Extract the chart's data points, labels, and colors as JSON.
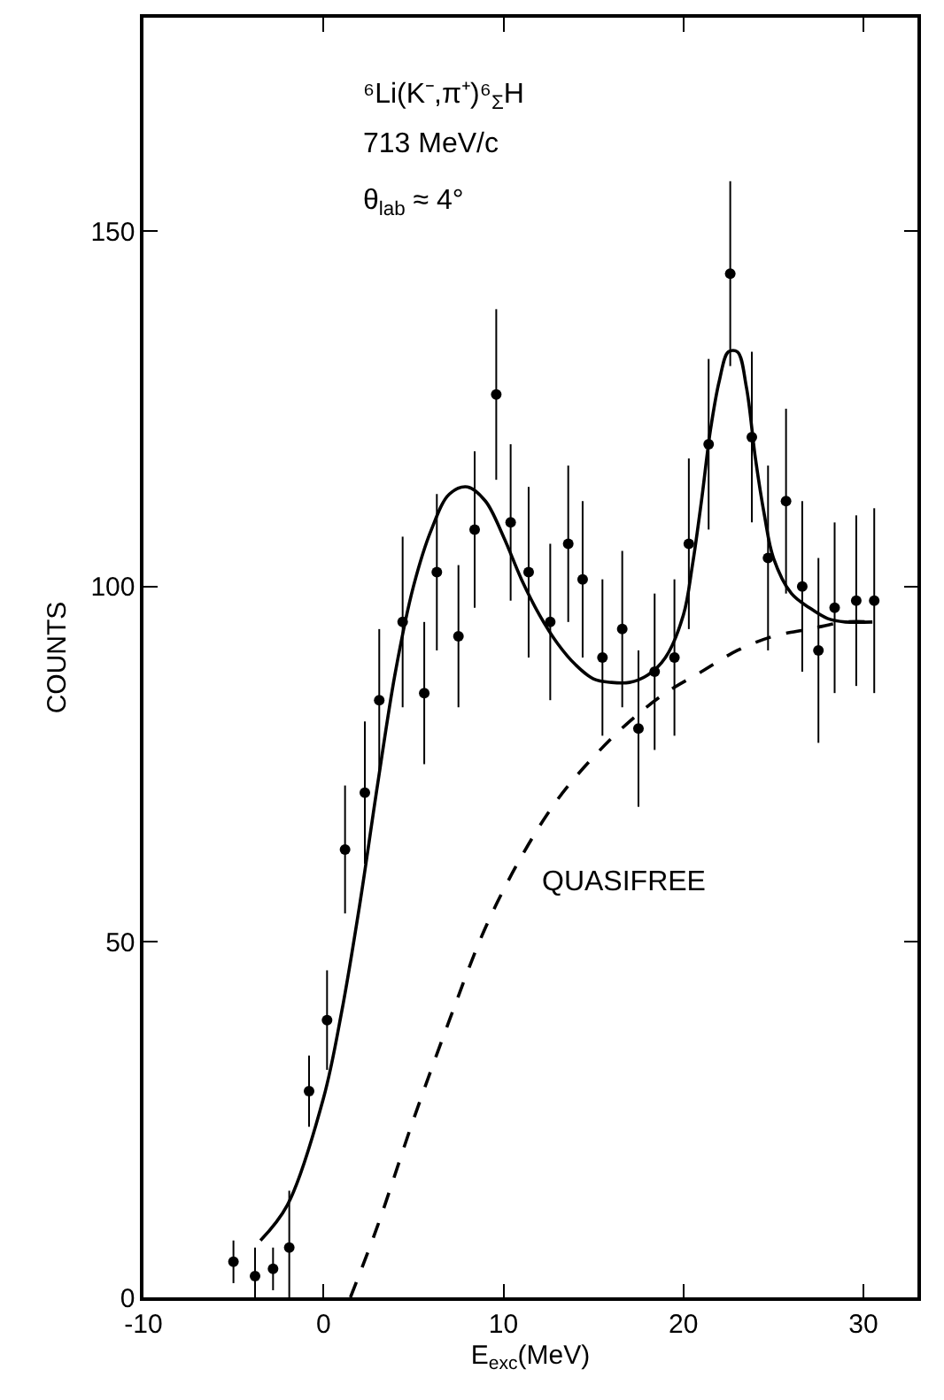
{
  "chart_data": {
    "type": "scatter",
    "xlabel": "E$_{exc}$(MeV)",
    "ylabel": "COUNTS",
    "annotations": [
      "⁶Li(K⁻,π⁺)⁶$_{Σ}$H",
      "713 MeV/c",
      "θ$_{lab}$ ≈ 4°",
      "QUASIFREE"
    ],
    "xlim": [
      -10,
      33
    ],
    "ylim": [
      0,
      180
    ],
    "xticks": [
      -10,
      0,
      10,
      20,
      30
    ],
    "yticks": [
      0,
      50,
      100,
      150
    ],
    "series": [
      {
        "color": "#000000",
        "marker": "circle",
        "x": [
          -5,
          -3.8,
          -2.8,
          -1.9,
          -0.8,
          0.2,
          1.2,
          2.3,
          3.1,
          4.4,
          5.6,
          6.3,
          7.5,
          8.4,
          9.6,
          10.4,
          11.4,
          12.6,
          13.6,
          14.4,
          15.5,
          16.6,
          17.5,
          18.4,
          19.5,
          20.3,
          21.4,
          22.6,
          23.8,
          24.7,
          25.7,
          26.6,
          27.5,
          28.4,
          29.6,
          30.6
        ],
        "values": [
          5,
          3,
          4,
          7,
          29,
          39,
          63,
          71,
          84,
          95,
          85,
          102,
          93,
          108,
          127,
          109,
          102,
          95,
          106,
          101,
          90,
          94,
          80,
          88,
          90,
          106,
          120,
          144,
          121,
          104,
          112,
          100,
          91,
          97,
          98,
          98
        ],
        "errors": [
          3,
          4,
          3,
          8,
          5,
          7,
          9,
          10,
          10,
          12,
          10,
          11,
          10,
          11,
          12,
          11,
          12,
          11,
          11,
          11,
          11,
          11,
          11,
          11,
          11,
          12,
          12,
          13,
          12,
          13,
          13,
          12,
          13,
          12,
          12,
          13
        ]
      },
      {
        "type": "line",
        "color": "#000000",
        "marker": "none",
        "line_style": "solid",
        "x": [
          -3.5,
          -2,
          0,
          1,
          2,
          3,
          4,
          5,
          6,
          7,
          8,
          9,
          10,
          11,
          12,
          13,
          14,
          15,
          16,
          17,
          18,
          19,
          20,
          20.5,
          21,
          21.5,
          22,
          22.5,
          23,
          23.5,
          24,
          24.5,
          25,
          26,
          27,
          28,
          29,
          30.5
        ],
        "values": [
          8,
          13,
          28,
          40,
          55,
          72,
          88,
          100,
          108,
          113,
          114,
          112,
          107,
          101,
          96,
          92,
          89,
          87,
          86.5,
          86.5,
          87.5,
          90,
          96,
          103,
          112,
          122,
          129,
          133,
          133,
          128,
          118,
          110,
          104,
          99,
          97,
          95.5,
          95,
          95
        ]
      },
      {
        "type": "line",
        "color": "#000000",
        "marker": "none",
        "line_style": "dashed",
        "x": [
          1.5,
          3,
          5,
          7,
          9,
          11,
          13,
          15,
          17,
          19,
          21,
          23,
          25,
          27,
          29,
          30.5
        ],
        "values": [
          0,
          10,
          25,
          39,
          52,
          62,
          70,
          76,
          81,
          85,
          88,
          91,
          93,
          94,
          95,
          95
        ]
      }
    ]
  }
}
